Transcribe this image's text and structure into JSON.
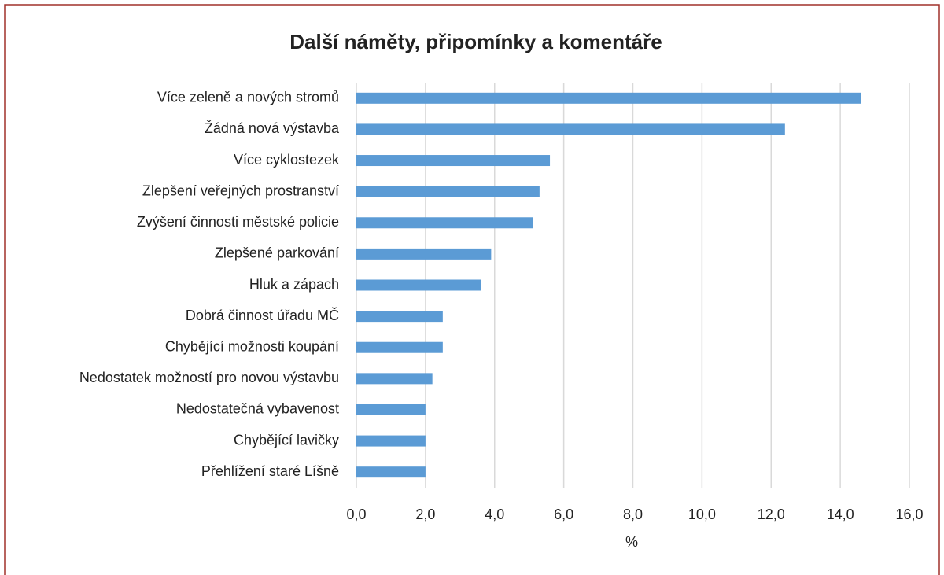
{
  "chart_data": {
    "type": "bar",
    "orientation": "horizontal",
    "title": "Další náměty, připomínky a komentáře",
    "xlabel": "%",
    "categories": [
      "Více zeleně a nových stromů",
      "Žádná nová výstavba",
      "Více cyklostezek",
      "Zlepšení veřejných prostranství",
      "Zvýšení činnosti městské policie",
      "Zlepšené parkování",
      "Hluk a zápach",
      "Dobrá činnost úřadu MČ",
      "Chybějící možnosti koupání",
      "Nedostatek možností pro novou výstavbu",
      "Nedostatečná vybavenost",
      "Chybějící lavičky",
      "Přehlížení staré Líšně"
    ],
    "values": [
      14.6,
      12.4,
      5.6,
      5.3,
      5.1,
      3.9,
      3.6,
      2.5,
      2.5,
      2.2,
      2.0,
      2.0,
      2.0
    ],
    "color": "#5b9bd5",
    "xlim": [
      0,
      16
    ],
    "xticks": [
      {
        "value": 0,
        "label": "0,0"
      },
      {
        "value": 2,
        "label": "2,0"
      },
      {
        "value": 4,
        "label": "4,0"
      },
      {
        "value": 6,
        "label": "6,0"
      },
      {
        "value": 8,
        "label": "8,0"
      },
      {
        "value": 10,
        "label": "10,0"
      },
      {
        "value": 12,
        "label": "12,0"
      },
      {
        "value": 14,
        "label": "14,0"
      },
      {
        "value": 16,
        "label": "16,0"
      }
    ],
    "grid": true
  }
}
